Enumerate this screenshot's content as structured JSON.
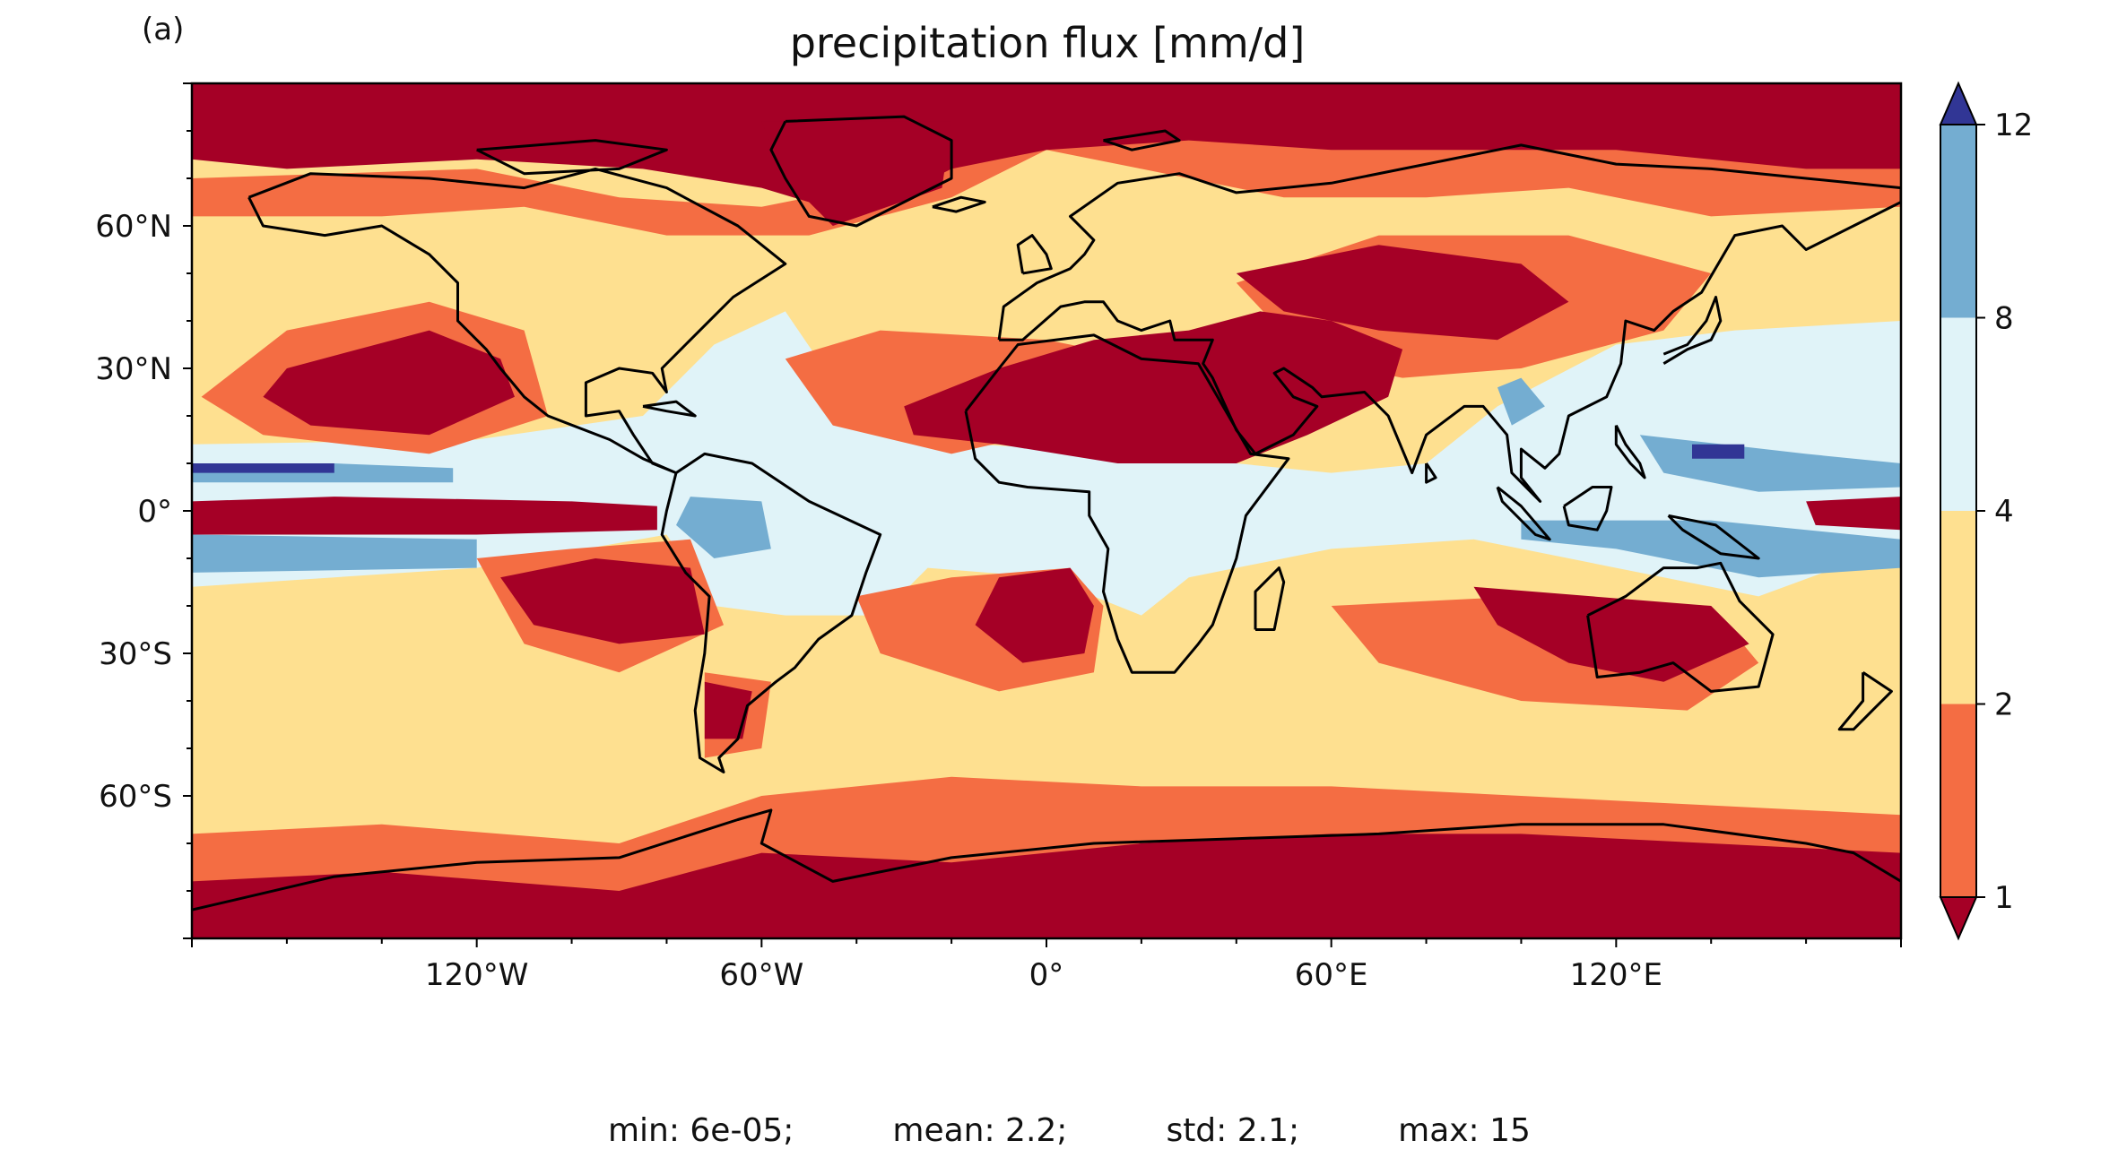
{
  "panel_label": "(a)",
  "title": "precipitation flux [mm/d]",
  "colors": {
    "lt1": "#a50026",
    "b1_2": "#f46d43",
    "b2_4": "#fee090",
    "b4_8": "#e0f3f8",
    "b8_12": "#74add1",
    "gt12": "#313695",
    "coast": "#000000"
  },
  "lon_ticks": [
    "120°W",
    "60°W",
    "0°",
    "60°E",
    "120°E"
  ],
  "lat_ticks": [
    "60°N",
    "30°N",
    "0°",
    "30°S",
    "60°S"
  ],
  "colorbar": {
    "levels": [
      1,
      2,
      4,
      8,
      12
    ],
    "labels": [
      "1",
      "2",
      "4",
      "8",
      "12"
    ]
  },
  "stats": {
    "min": "min: 6e-05;",
    "mean": "mean: 2.2;",
    "std": "std: 2.1;",
    "max": "max: 15"
  }
}
